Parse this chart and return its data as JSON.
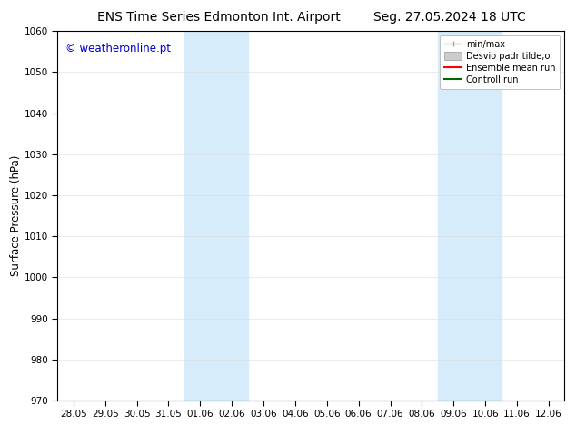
{
  "title_left": "ENS Time Series Edmonton Int. Airport",
  "title_right": "Seg. 27.05.2024 18 UTC",
  "ylabel": "Surface Pressure (hPa)",
  "ylim": [
    970,
    1060
  ],
  "yticks": [
    970,
    980,
    990,
    1000,
    1010,
    1020,
    1030,
    1040,
    1050,
    1060
  ],
  "xtick_labels": [
    "28.05",
    "29.05",
    "30.05",
    "31.05",
    "01.06",
    "02.06",
    "03.06",
    "04.06",
    "05.06",
    "06.06",
    "07.06",
    "08.06",
    "09.06",
    "10.06",
    "11.06",
    "12.06"
  ],
  "watermark": "© weatheronline.pt",
  "watermark_color": "#0000cc",
  "background_color": "#ffffff",
  "plot_bg_color": "#ffffff",
  "shaded_bands": [
    {
      "xstart": 4,
      "xend": 6,
      "color": "#d6ecfa"
    },
    {
      "xstart": 12,
      "xend": 14,
      "color": "#d6ecfa"
    }
  ],
  "legend_entries": [
    {
      "label": "min/max",
      "color": "#aaaaaa",
      "style": "errorbar"
    },
    {
      "label": "Desvio padr tilde;o",
      "color": "#cccccc",
      "style": "bar"
    },
    {
      "label": "Ensemble mean run",
      "color": "#ff0000",
      "style": "line"
    },
    {
      "label": "Controll run",
      "color": "#006600",
      "style": "line"
    }
  ],
  "title_fontsize": 10,
  "tick_fontsize": 7.5,
  "ylabel_fontsize": 8.5,
  "watermark_fontsize": 8.5,
  "legend_fontsize": 7
}
